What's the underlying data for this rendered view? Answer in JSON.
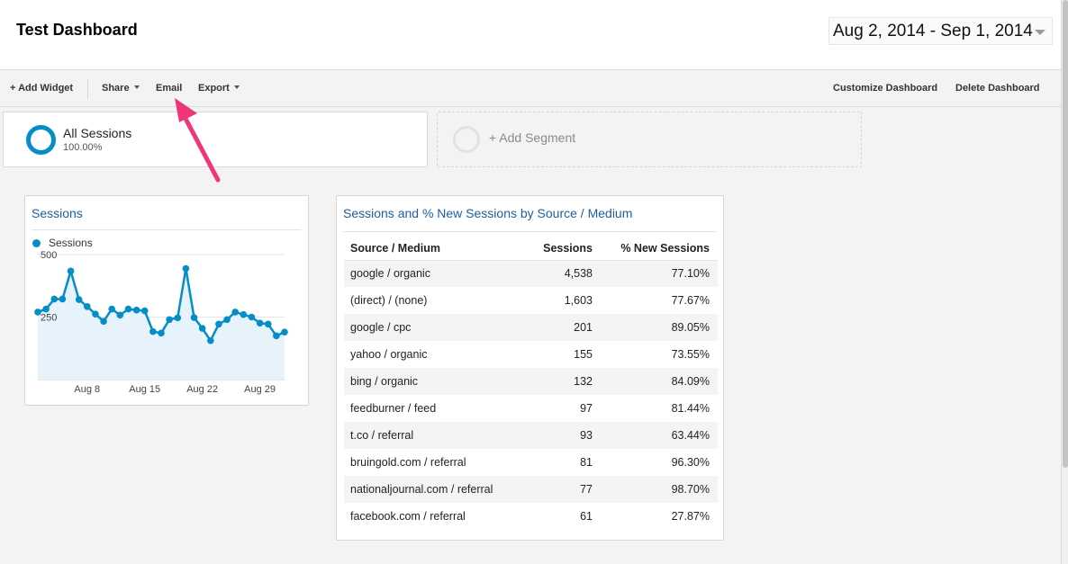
{
  "header": {
    "title": "Test Dashboard",
    "date_range": "Aug 2, 2014 - Sep 1, 2014"
  },
  "toolbar": {
    "add_widget": "+ Add Widget",
    "share": "Share",
    "email": "Email",
    "export": "Export",
    "customize": "Customize Dashboard",
    "delete": "Delete Dashboard"
  },
  "segments": {
    "active": {
      "name": "All Sessions",
      "percent": "100.00%"
    },
    "add_label": "+ Add Segment"
  },
  "colors": {
    "accent": "#058dc7",
    "title_link": "#1c5fa5",
    "area_fill": "#e6f3fa",
    "annotation_arrow": "#f0367a"
  },
  "sessions_widget": {
    "title": "Sessions",
    "legend": "Sessions",
    "chart_data": {
      "type": "area",
      "series": [
        {
          "name": "Sessions",
          "values": [
            270,
            282,
            322,
            322,
            434,
            320,
            292,
            262,
            233,
            282,
            258,
            282,
            278,
            275,
            192,
            186,
            240,
            247,
            444,
            248,
            205,
            156,
            222,
            240,
            270,
            260,
            250,
            226,
            222,
            175,
            190
          ]
        }
      ],
      "x": [
        "Aug 2",
        "Aug 3",
        "Aug 4",
        "Aug 5",
        "Aug 6",
        "Aug 7",
        "Aug 8",
        "Aug 9",
        "Aug 10",
        "Aug 11",
        "Aug 12",
        "Aug 13",
        "Aug 14",
        "Aug 15",
        "Aug 16",
        "Aug 17",
        "Aug 18",
        "Aug 19",
        "Aug 20",
        "Aug 21",
        "Aug 22",
        "Aug 23",
        "Aug 24",
        "Aug 25",
        "Aug 26",
        "Aug 27",
        "Aug 28",
        "Aug 29",
        "Aug 30",
        "Aug 31",
        "Sep 1"
      ],
      "xticks": [
        "Aug 8",
        "Aug 15",
        "Aug 22",
        "Aug 29"
      ],
      "yticks": [
        500,
        250
      ],
      "ylim": [
        0,
        500
      ]
    }
  },
  "source_table": {
    "title": "Sessions and % New Sessions by Source / Medium",
    "columns": [
      "Source / Medium",
      "Sessions",
      "% New Sessions"
    ],
    "rows": [
      [
        "google / organic",
        "4,538",
        "77.10%"
      ],
      [
        "(direct) / (none)",
        "1,603",
        "77.67%"
      ],
      [
        "google / cpc",
        "201",
        "89.05%"
      ],
      [
        "yahoo / organic",
        "155",
        "73.55%"
      ],
      [
        "bing / organic",
        "132",
        "84.09%"
      ],
      [
        "feedburner / feed",
        "97",
        "81.44%"
      ],
      [
        "t.co / referral",
        "93",
        "63.44%"
      ],
      [
        "bruingold.com / referral",
        "81",
        "96.30%"
      ],
      [
        "nationaljournal.com / referral",
        "77",
        "98.70%"
      ],
      [
        "facebook.com / referral",
        "61",
        "27.87%"
      ]
    ]
  }
}
